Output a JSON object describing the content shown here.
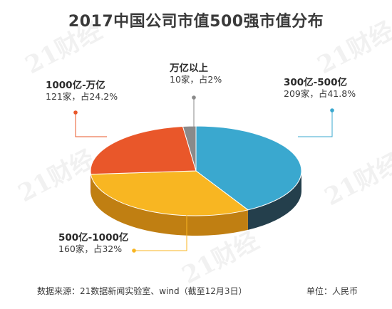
{
  "title": "2017中国公司市值500强市值分布",
  "watermark": "21财经",
  "chart_data": {
    "type": "pie",
    "style": "3d",
    "total": 500,
    "slices": [
      {
        "label": "300亿-500亿",
        "count_text": "209家，占41.8%",
        "count": 209,
        "percent": 41.8,
        "color": "#3aa8cf",
        "side_color": "#243f4c"
      },
      {
        "label": "500亿-1000亿",
        "count_text": "160家，占32%",
        "count": 160,
        "percent": 32,
        "color": "#f8b622",
        "side_color": "#c07f12"
      },
      {
        "label": "1000亿-万亿",
        "count_text": "121家，占24.2%",
        "count": 121,
        "percent": 24.2,
        "color": "#e9572a",
        "side_color": "#a63a1a"
      },
      {
        "label": "万亿以上",
        "count_text": "10家，占2%",
        "count": 10,
        "percent": 2,
        "color": "#8a8a8a",
        "side_color": "#5a5a5a"
      }
    ]
  },
  "footer": {
    "source": "数据来源：21数据新闻实验室、wind（截至12月3日）",
    "unit": "单位：人民币"
  }
}
